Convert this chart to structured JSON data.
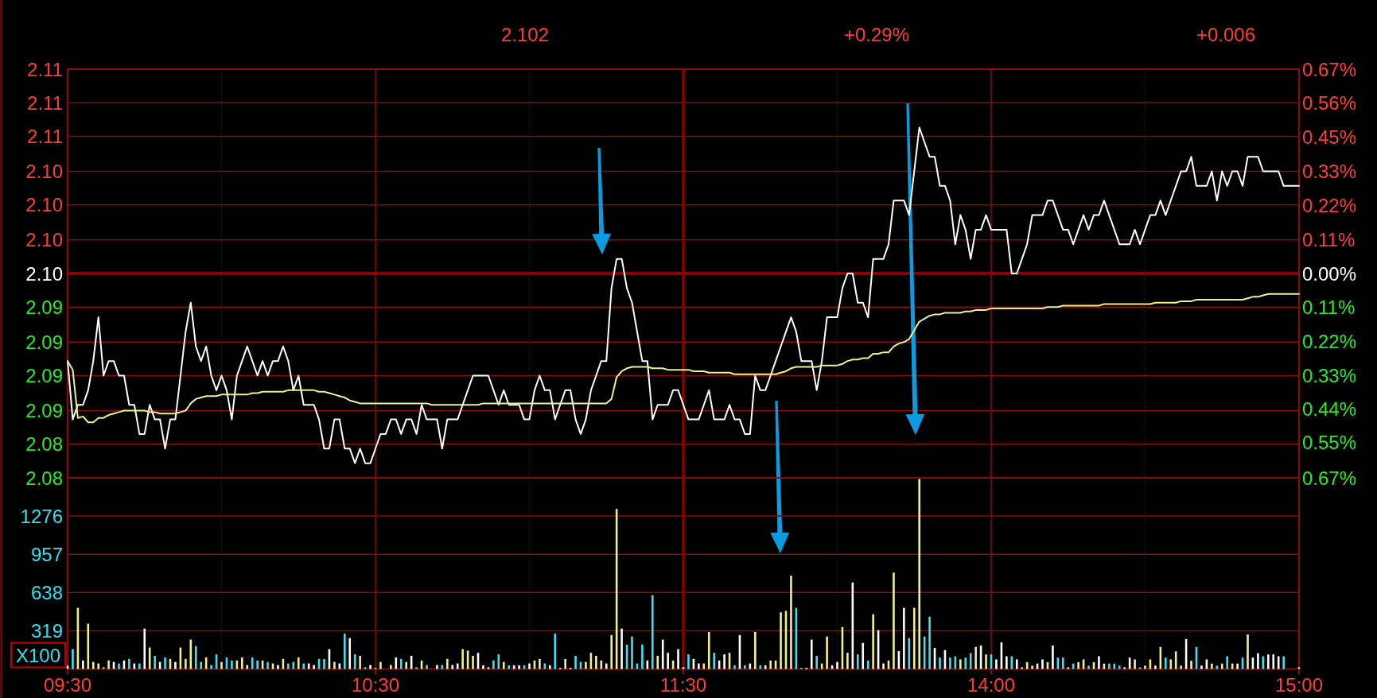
{
  "chart_data": [
    {
      "type": "line",
      "annotations": [
        "2.102",
        "+0.29%",
        "+0.006"
      ],
      "categories": [
        "09:30",
        null,
        null,
        null,
        null,
        null,
        null,
        null,
        null,
        null,
        null,
        null,
        null,
        null,
        null,
        null,
        null,
        null,
        null,
        null,
        null,
        null,
        null,
        null,
        null,
        null,
        null,
        null,
        null,
        null,
        null,
        null,
        null,
        null,
        null,
        null,
        null,
        null,
        null,
        null,
        null,
        null,
        null,
        null,
        null,
        null,
        null,
        null,
        null,
        null,
        null,
        null,
        null,
        null,
        null,
        null,
        null,
        null,
        null,
        null,
        "10:30",
        null,
        null,
        null,
        null,
        null,
        null,
        null,
        null,
        null,
        null,
        null,
        null,
        null,
        null,
        null,
        null,
        null,
        null,
        null,
        null,
        null,
        null,
        null,
        null,
        null,
        null,
        null,
        null,
        null,
        null,
        null,
        null,
        null,
        null,
        null,
        null,
        null,
        null,
        null,
        null,
        null,
        null,
        null,
        null,
        null,
        null,
        null,
        null,
        null,
        null,
        null,
        null,
        null,
        null,
        null,
        null,
        null,
        null,
        null,
        "11:30",
        null,
        null,
        null,
        null,
        null,
        null,
        null,
        null,
        null,
        null,
        null,
        null,
        null,
        null,
        null,
        null,
        null,
        null,
        null,
        null,
        null,
        null,
        null,
        null,
        null,
        null,
        null,
        null,
        null,
        null,
        null,
        null,
        null,
        null,
        null,
        null,
        null,
        null,
        null,
        null,
        null,
        null,
        null,
        null,
        null,
        null,
        null,
        null,
        null,
        null,
        null,
        null,
        null,
        null,
        null,
        null,
        null,
        null,
        null,
        "14:00",
        null,
        null,
        null,
        null,
        null,
        null,
        null,
        null,
        null,
        null,
        null,
        null,
        null,
        null,
        null,
        null,
        null,
        null,
        null,
        null,
        null,
        null,
        null,
        null,
        null,
        null,
        null,
        null,
        null,
        null,
        null,
        null,
        null,
        null,
        null,
        null,
        null,
        null,
        null,
        null,
        null,
        null,
        null,
        null,
        null,
        null,
        null,
        null,
        null,
        null,
        null,
        null,
        null,
        null,
        null,
        null,
        null,
        null,
        null,
        "15:00"
      ],
      "series": [
        {
          "color": "#ffffff",
          "values": [
            2.09,
            2.086,
            2.087,
            2.087,
            2.088,
            2.09,
            2.093,
            2.089,
            2.09,
            2.09,
            2.089,
            2.089,
            2.087,
            2.087,
            2.085,
            2.085,
            2.087,
            2.086,
            2.086,
            2.084,
            2.086,
            2.086,
            2.089,
            2.092,
            2.094,
            2.091,
            2.09,
            2.091,
            2.089,
            2.088,
            2.089,
            2.088,
            2.086,
            2.089,
            2.09,
            2.091,
            2.09,
            2.089,
            2.09,
            2.089,
            2.09,
            2.09,
            2.091,
            2.09,
            2.088,
            2.089,
            2.087,
            2.087,
            2.087,
            2.086,
            2.084,
            2.084,
            2.086,
            2.086,
            2.084,
            2.084,
            2.083,
            2.084,
            2.083,
            2.083,
            2.084,
            2.085,
            2.085,
            2.086,
            2.086,
            2.085,
            2.086,
            2.086,
            2.085,
            2.087,
            2.086,
            2.086,
            2.086,
            2.084,
            2.086,
            2.086,
            2.086,
            2.087,
            2.088,
            2.089,
            2.089,
            2.089,
            2.089,
            2.088,
            2.087,
            2.088,
            2.087,
            2.087,
            2.087,
            2.086,
            2.086,
            2.088,
            2.089,
            2.088,
            2.088,
            2.086,
            2.087,
            2.088,
            2.088,
            2.086,
            2.085,
            2.086,
            2.088,
            2.089,
            2.09,
            2.09,
            2.095,
            2.097,
            2.097,
            2.095,
            2.094,
            2.092,
            2.09,
            2.09,
            2.086,
            2.087,
            2.087,
            2.087,
            2.088,
            2.088,
            2.087,
            2.086,
            2.086,
            2.086,
            2.087,
            2.088,
            2.086,
            2.086,
            2.086,
            2.087,
            2.086,
            2.086,
            2.085,
            2.085,
            2.089,
            2.088,
            2.088,
            2.089,
            2.09,
            2.091,
            2.092,
            2.093,
            2.092,
            2.09,
            2.09,
            2.09,
            2.088,
            2.09,
            2.093,
            2.093,
            2.093,
            2.095,
            2.096,
            2.096,
            2.094,
            2.094,
            2.093,
            2.097,
            2.097,
            2.097,
            2.098,
            2.101,
            2.101,
            2.101,
            2.1,
            2.103,
            2.106,
            2.105,
            2.104,
            2.104,
            2.102,
            2.102,
            2.101,
            2.098,
            2.1,
            2.099,
            2.097,
            2.099,
            2.099,
            2.1,
            2.099,
            2.099,
            2.099,
            2.099,
            2.096,
            2.096,
            2.097,
            2.098,
            2.1,
            2.1,
            2.1,
            2.101,
            2.101,
            2.1,
            2.099,
            2.099,
            2.098,
            2.099,
            2.1,
            2.099,
            2.1,
            2.1,
            2.101,
            2.1,
            2.099,
            2.098,
            2.098,
            2.098,
            2.099,
            2.098,
            2.099,
            2.1,
            2.1,
            2.101,
            2.1,
            2.101,
            2.102,
            2.103,
            2.103,
            2.104,
            2.102,
            2.102,
            2.102,
            2.103,
            2.101,
            2.103,
            2.102,
            2.103,
            2.103,
            2.102,
            2.104,
            2.104,
            2.104,
            2.103,
            2.103,
            2.103,
            2.103,
            2.102,
            2.102,
            2.102,
            2.102
          ]
        },
        {
          "color": "#f0f08c",
          "values": [
            2.09,
            2.0894,
            2.0861,
            2.0862,
            2.0858,
            2.0858,
            2.0861,
            2.0861,
            2.0863,
            2.0864,
            2.0865,
            2.0866,
            2.0866,
            2.0866,
            2.0866,
            2.0866,
            2.0865,
            2.0865,
            2.0864,
            2.0864,
            2.0864,
            2.0864,
            2.0865,
            2.0866,
            2.0871,
            2.0874,
            2.0875,
            2.0876,
            2.0876,
            2.0876,
            2.0877,
            2.0877,
            2.0877,
            2.0877,
            2.0877,
            2.0877,
            2.0878,
            2.0878,
            2.0879,
            2.0879,
            2.0879,
            2.0879,
            2.0879,
            2.088,
            2.088,
            2.088,
            2.088,
            2.088,
            2.088,
            2.0879,
            2.0879,
            2.0878,
            2.0877,
            2.0876,
            2.0875,
            2.0873,
            2.0872,
            2.0871,
            2.0871,
            2.0871,
            2.0871,
            2.0871,
            2.0871,
            2.0871,
            2.0871,
            2.0871,
            2.0871,
            2.0871,
            2.0871,
            2.0871,
            2.0871,
            2.087,
            2.087,
            2.087,
            2.087,
            2.087,
            2.087,
            2.087,
            2.087,
            2.087,
            2.087,
            2.0871,
            2.0871,
            2.0871,
            2.0871,
            2.0871,
            2.0871,
            2.0871,
            2.0871,
            2.0871,
            2.0871,
            2.0871,
            2.0871,
            2.0871,
            2.0871,
            2.0871,
            2.0871,
            2.0871,
            2.0871,
            2.0871,
            2.0871,
            2.0871,
            2.0871,
            2.0871,
            2.0871,
            2.0871,
            2.0874,
            2.0889,
            2.0893,
            2.0895,
            2.0896,
            2.0896,
            2.0896,
            2.0896,
            2.0895,
            2.0895,
            2.0895,
            2.0894,
            2.0894,
            2.0894,
            2.0894,
            2.0894,
            2.0893,
            2.0893,
            2.0893,
            2.0892,
            2.0892,
            2.0892,
            2.0892,
            2.0892,
            2.0891,
            2.0891,
            2.0891,
            2.0891,
            2.0891,
            2.0891,
            2.0891,
            2.0891,
            2.0891,
            2.0892,
            2.0893,
            2.0895,
            2.0896,
            2.0896,
            2.0896,
            2.0896,
            2.0896,
            2.0897,
            2.0897,
            2.0897,
            2.0897,
            2.0898,
            2.09,
            2.0901,
            2.0901,
            2.0902,
            2.0902,
            2.0905,
            2.0905,
            2.0906,
            2.0906,
            2.091,
            2.0912,
            2.0913,
            2.0915,
            2.0921,
            2.0927,
            2.0929,
            2.0931,
            2.0932,
            2.0932,
            2.0933,
            2.0933,
            2.0933,
            2.0933,
            2.0934,
            2.0934,
            2.0935,
            2.0935,
            2.0935,
            2.0936,
            2.0936,
            2.0936,
            2.0936,
            2.0936,
            2.0936,
            2.0936,
            2.0936,
            2.0936,
            2.0936,
            2.0936,
            2.0937,
            2.0937,
            2.0937,
            2.0938,
            2.0938,
            2.0938,
            2.0938,
            2.0938,
            2.0938,
            2.0938,
            2.0938,
            2.0939,
            2.0939,
            2.0939,
            2.0939,
            2.0939,
            2.0939,
            2.0939,
            2.0939,
            2.0939,
            2.0939,
            2.094,
            2.094,
            2.094,
            2.094,
            2.094,
            2.0941,
            2.0941,
            2.0941,
            2.0942,
            2.0942,
            2.0942,
            2.0942,
            2.0942,
            2.0942,
            2.0942,
            2.0942,
            2.0942,
            2.0942,
            2.0943,
            2.0944,
            2.0944,
            2.0945,
            2.0946,
            2.0946,
            2.0946,
            2.0946,
            2.0946,
            2.0946,
            2.0946
          ]
        }
      ],
      "ylim": [
        2.082,
        2.11
      ],
      "yticks": [
        {
          "value": 2.082,
          "label": "2.08"
        },
        {
          "value": 2.0843,
          "label": "2.08"
        },
        {
          "value": 2.0866,
          "label": "2.09"
        },
        {
          "value": 2.089,
          "label": "2.09"
        },
        {
          "value": 2.0913,
          "label": "2.09"
        },
        {
          "value": 2.0937,
          "label": "2.09"
        },
        {
          "value": 2.096,
          "label": "2.10"
        },
        {
          "value": 2.0983,
          "label": "2.10"
        },
        {
          "value": 2.1007,
          "label": "2.10"
        },
        {
          "value": 2.103,
          "label": "2.10"
        },
        {
          "value": 2.1054,
          "label": "2.11"
        },
        {
          "value": 2.1077,
          "label": "2.11"
        },
        {
          "value": 2.11,
          "label": "2.11"
        }
      ],
      "y2lim": [
        -0.67,
        0.67
      ],
      "y2ticks": [
        {
          "value": -0.67,
          "label": "0.67%"
        },
        {
          "value": -0.555,
          "label": "0.55%"
        },
        {
          "value": -0.445,
          "label": "0.44%"
        },
        {
          "value": -0.335,
          "label": "0.33%"
        },
        {
          "value": -0.223,
          "label": "0.22%"
        },
        {
          "value": -0.112,
          "label": "0.11%"
        },
        {
          "value": 0,
          "label": "0.00%"
        },
        {
          "value": 0.112,
          "label": "0.11%"
        },
        {
          "value": 0.223,
          "label": "0.22%"
        },
        {
          "value": 0.335,
          "label": "0.33%"
        },
        {
          "value": 0.447,
          "label": "0.45%"
        },
        {
          "value": 0.558,
          "label": "0.56%"
        },
        {
          "value": 0.67,
          "label": "0.67%"
        }
      ],
      "ref_lines": [
        {
          "axis": "y",
          "value": 2.096,
          "color": "#8b0000"
        },
        {
          "axis": "x",
          "value": "11:30",
          "color": "#8b0000"
        }
      ],
      "grid": true,
      "tick_labels": "y"
    },
    {
      "type": "bar",
      "ylabel": "X100",
      "categories": [
        "09:30",
        null,
        null,
        null,
        null,
        null,
        null,
        null,
        null,
        null,
        null,
        null,
        null,
        null,
        null,
        null,
        null,
        null,
        null,
        null,
        null,
        null,
        null,
        null,
        null,
        null,
        null,
        null,
        null,
        null,
        null,
        null,
        null,
        null,
        null,
        null,
        null,
        null,
        null,
        null,
        null,
        null,
        null,
        null,
        null,
        null,
        null,
        null,
        null,
        null,
        null,
        null,
        null,
        null,
        null,
        null,
        null,
        null,
        null,
        null,
        "10:30",
        null,
        null,
        null,
        null,
        null,
        null,
        null,
        null,
        null,
        null,
        null,
        null,
        null,
        null,
        null,
        null,
        null,
        null,
        null,
        null,
        null,
        null,
        null,
        null,
        null,
        null,
        null,
        null,
        null,
        null,
        null,
        null,
        null,
        null,
        null,
        null,
        null,
        null,
        null,
        null,
        null,
        null,
        null,
        null,
        null,
        null,
        null,
        null,
        null,
        null,
        null,
        null,
        null,
        null,
        null,
        null,
        null,
        null,
        null,
        "11:30",
        null,
        null,
        null,
        null,
        null,
        null,
        null,
        null,
        null,
        null,
        null,
        null,
        null,
        null,
        null,
        null,
        null,
        null,
        null,
        null,
        null,
        null,
        null,
        null,
        null,
        null,
        null,
        null,
        null,
        null,
        null,
        null,
        null,
        null,
        null,
        null,
        null,
        null,
        null,
        null,
        null,
        null,
        null,
        null,
        null,
        null,
        null,
        null,
        null,
        null,
        null,
        null,
        null,
        null,
        null,
        null,
        null,
        null,
        null,
        "14:00",
        null,
        null,
        null,
        null,
        null,
        null,
        null,
        null,
        null,
        null,
        null,
        null,
        null,
        null,
        null,
        null,
        null,
        null,
        null,
        null,
        null,
        null,
        null,
        null,
        null,
        null,
        null,
        null,
        null,
        null,
        null,
        null,
        null,
        null,
        null,
        null,
        null,
        null,
        null,
        null,
        null,
        null,
        null,
        null,
        null,
        null,
        null,
        null,
        null,
        null,
        null,
        null,
        null,
        null,
        null,
        null,
        null,
        null,
        null,
        "15:00"
      ],
      "values": [
        28,
        166,
        510,
        71,
        378,
        59,
        46,
        15,
        71,
        59,
        46,
        71,
        84,
        46,
        46,
        337,
        179,
        110,
        59,
        97,
        84,
        59,
        179,
        84,
        245,
        191,
        59,
        97,
        33,
        122,
        59,
        97,
        71,
        71,
        97,
        33,
        97,
        71,
        71,
        59,
        46,
        33,
        84,
        46,
        59,
        97,
        46,
        46,
        33,
        84,
        84,
        166,
        59,
        46,
        296,
        258,
        122,
        110,
        15,
        33,
        10,
        59,
        null,
        33,
        97,
        84,
        59,
        110,
        15,
        71,
        33,
        null,
        33,
        33,
        84,
        33,
        46,
        166,
        153,
        110,
        135,
        31,
        15,
        71,
        122,
        59,
        31,
        31,
        31,
        31,
        46,
        71,
        84,
        46,
        31,
        296,
        10,
        84,
        10,
        110,
        59,
        59,
        135,
        110,
        71,
        46,
        283,
        1335,
        337,
        204,
        271,
        46,
        204,
        71,
        615,
        110,
        245,
        135,
        71,
        166,
        15,
        122,
        84,
        46,
        46,
        309,
        135,
        71,
        122,
        135,
        31,
        283,
        31,
        46,
        309,
        31,
        31,
        71,
        71,
        472,
        485,
        778,
        510,
        10,
        10,
        245,
        110,
        46,
        271,
        31,
        59,
        350,
        135,
        722,
        122,
        217,
        71,
        457,
        324,
        46,
        71,
        804,
        148,
        510,
        258,
        510,
        1585,
        271,
        437,
        175,
        96,
        158,
        95,
        106,
        80,
        95,
        132,
        184,
        196,
        121,
        121,
        80,
        222,
        106,
        106,
        80,
        14,
        57,
        28,
        45,
        80,
        57,
        196,
        95,
        95,
        14,
        45,
        57,
        80,
        28,
        57,
        106,
        45,
        45,
        45,
        28,
        14,
        95,
        80,
        14,
        28,
        80,
        28,
        184,
        95,
        80,
        147,
        28,
        250,
        69,
        184,
        28,
        80,
        45,
        28,
        45,
        106,
        45,
        45,
        95,
        288,
        95,
        132,
        106,
        121,
        121,
        106,
        106,
        null,
        null,
        14
      ],
      "colors": [
        "#ffffff",
        "#40e0f0",
        "#f0f08c",
        "#ffffff",
        "#f0f08c",
        "#f0f08c",
        "#f0f08c",
        "#40e0f0",
        "#f0f08c",
        "#ffffff",
        "#40e0f0",
        "#ffffff",
        "#40e0f0",
        "#ffffff",
        "#40e0f0",
        "#ffffff",
        "#f0f08c",
        "#40e0f0",
        "#ffffff",
        "#40e0f0",
        "#f0f08c",
        "#ffffff",
        "#f0f08c",
        "#f0f08c",
        "#f0f08c",
        "#40e0f0",
        "#40e0f0",
        "#f0f08c",
        "#40e0f0",
        "#40e0f0",
        "#f0f08c",
        "#40e0f0",
        "#40e0f0",
        "#f0f08c",
        "#f0f08c",
        "#f0f08c",
        "#40e0f0",
        "#40e0f0",
        "#f0f08c",
        "#40e0f0",
        "#f0f08c",
        "#ffffff",
        "#f0f08c",
        "#40e0f0",
        "#40e0f0",
        "#f0f08c",
        "#40e0f0",
        "#ffffff",
        "#ffffff",
        "#40e0f0",
        "#40e0f0",
        "#ffffff",
        "#f0f08c",
        "#ffffff",
        "#40e0f0",
        "#ffffff",
        "#40e0f0",
        "#f0f08c",
        "#40e0f0",
        "#ffffff",
        "#f0f08c",
        "#f0f08c",
        null,
        "#f0f08c",
        "#ffffff",
        "#40e0f0",
        "#f0f08c",
        "#ffffff",
        "#40e0f0",
        "#f0f08c",
        "#40e0f0",
        null,
        "#ffffff",
        "#40e0f0",
        "#f0f08c",
        "#ffffff",
        "#ffffff",
        "#f0f08c",
        "#f0f08c",
        "#f0f08c",
        "#ffffff",
        "#ffffff",
        "#ffffff",
        "#40e0f0",
        "#40e0f0",
        "#f0f08c",
        "#40e0f0",
        "#ffffff",
        "#ffffff",
        "#40e0f0",
        "#ffffff",
        "#f0f08c",
        "#f0f08c",
        "#40e0f0",
        "#ffffff",
        "#40e0f0",
        "#ffffff",
        "#f0f08c",
        "#ffffff",
        "#40e0f0",
        "#40e0f0",
        "#f0f08c",
        "#f0f08c",
        "#f0f08c",
        "#f0f08c",
        "#ffffff",
        "#f0f08c",
        "#f0f08c",
        "#ffffff",
        "#40e0f0",
        "#40e0f0",
        "#40e0f0",
        "#40e0f0",
        "#ffffff",
        "#40e0f0",
        "#f0f08c",
        "#ffffff",
        "#ffffff",
        "#f0f08c",
        "#ffffff",
        "#ffffff",
        "#40e0f0",
        "#ffffff",
        "#ffffff",
        "#f0f08c",
        "#f0f08c",
        "#40e0f0",
        "#ffffff",
        "#ffffff",
        "#f0f08c",
        "#40e0f0",
        "#ffffff",
        "#40e0f0",
        "#ffffff",
        "#f0f08c",
        "#40e0f0",
        "#ffffff",
        "#f0f08c",
        "#f0f08c",
        "#f0f08c",
        "#f0f08c",
        "#f0f08c",
        "#40e0f0",
        "#40e0f0",
        "#ffffff",
        "#ffffff",
        "#40e0f0",
        "#f0f08c",
        "#f0f08c",
        "#ffffff",
        "#ffffff",
        "#f0f08c",
        "#f0f08c",
        "#ffffff",
        "#40e0f0",
        "#ffffff",
        "#40e0f0",
        "#f0f08c",
        "#ffffff",
        "#ffffff",
        "#f0f08c",
        "#f0f08c",
        "#ffffff",
        "#ffffff",
        "#40e0f0",
        "#f0f08c",
        "#f0f08c",
        "#40e0f0",
        "#40e0f0",
        "#ffffff",
        "#40e0f0",
        "#ffffff",
        "#40e0f0",
        "#40e0f0",
        "#f0f08c",
        "#40e0f0",
        "#40e0f0",
        "#f0f08c",
        "#ffffff",
        "#f0f08c",
        "#40e0f0",
        "#ffffff",
        "#ffffff",
        "#ffffff",
        "#40e0f0",
        "#ffffff",
        "#f0f08c",
        "#f0f08c",
        "#f0f08c",
        "#ffffff",
        "#ffffff",
        "#f0f08c",
        "#ffffff",
        "#40e0f0",
        "#40e0f0",
        "#ffffff",
        "#40e0f0",
        "#f0f08c",
        "#f0f08c",
        "#40e0f0",
        "#f0f08c",
        "#ffffff",
        "#f0f08c",
        "#40e0f0",
        "#40e0f0",
        "#40e0f0",
        "#ffffff",
        "#ffffff",
        "#f0f08c",
        "#40e0f0",
        "#f0f08c",
        "#f0f08c",
        "#ffffff",
        "#f0f08c",
        "#40e0f0",
        "#f0f08c",
        "#f0f08c",
        "#f0f08c",
        "#ffffff",
        "#f0f08c",
        "#40e0f0",
        "#ffffff",
        "#ffffff",
        "#f0f08c",
        "#40e0f0",
        "#f0f08c",
        "#40e0f0",
        "#f0f08c",
        "#ffffff",
        "#40e0f0",
        "#f0f08c",
        "#ffffff",
        "#ffffff",
        "#40e0f0",
        "#ffffff",
        "#ffffff",
        "#ffffff",
        "#40e0f0",
        null,
        null,
        "#ffffff"
      ],
      "ylim": [
        0,
        1595
      ],
      "yticks": [
        319,
        638,
        957,
        1276
      ],
      "ref_lines": [
        {
          "axis": "x",
          "value": "11:30",
          "color": "#8b0000"
        }
      ],
      "grid": true
    }
  ]
}
